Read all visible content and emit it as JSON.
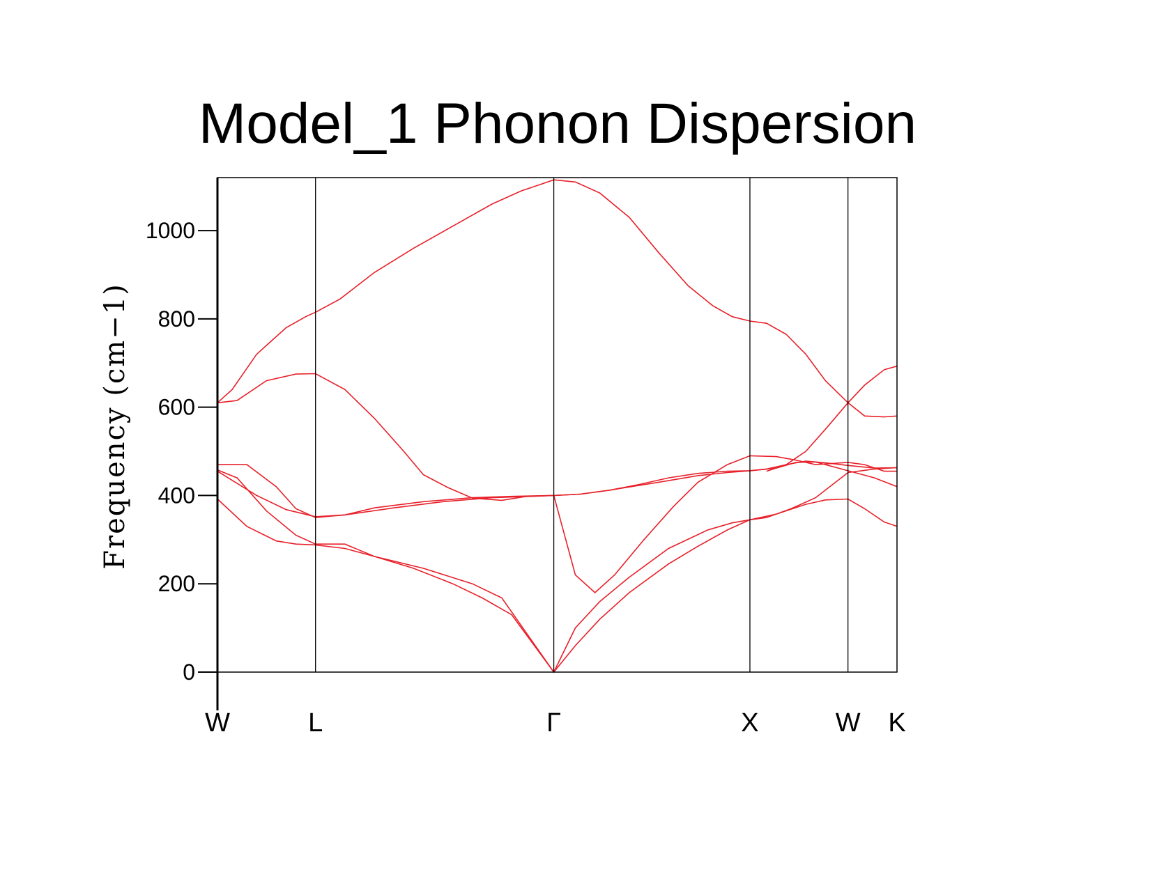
{
  "chart_data": {
    "type": "line",
    "title": "Model_1 Phonon Dispersion",
    "xlabel": "",
    "ylabel": "Frequency  (cm−1)",
    "ylim": [
      0,
      1120
    ],
    "xlim": [
      0,
      6.93
    ],
    "yticks": [
      0,
      200,
      400,
      600,
      800,
      1000
    ],
    "grid": false,
    "legend": "none",
    "line_color": "#e8202a",
    "high_symmetry_points": [
      {
        "label": "W",
        "x": 0
      },
      {
        "label": "L",
        "x": 1.0
      },
      {
        "label": "Γ",
        "x": 3.43
      },
      {
        "label": "X",
        "x": 5.43
      },
      {
        "label": "W",
        "x": 6.43
      },
      {
        "label": "K",
        "x": 6.93
      }
    ],
    "series": [
      {
        "x": [
          0,
          0.3,
          0.6,
          0.8,
          1.0,
          1.3,
          1.6,
          2.0,
          2.4,
          2.7,
          3.0,
          3.43,
          3.65,
          3.9,
          4.2,
          4.6,
          4.9,
          5.2,
          5.43,
          5.7,
          6.0,
          6.2,
          6.43,
          6.6,
          6.8,
          6.93
        ],
        "y": [
          392,
          330,
          297,
          290,
          288,
          280,
          262,
          235,
          200,
          168,
          130,
          0,
          60,
          120,
          180,
          245,
          285,
          322,
          345,
          358,
          380,
          390,
          392,
          370,
          340,
          330
        ]
      },
      {
        "x": [
          0,
          0.2,
          0.5,
          0.8,
          1.0,
          1.3,
          1.6,
          2.1,
          2.6,
          2.9,
          3.43,
          3.65,
          3.9,
          4.2,
          4.6,
          5.0,
          5.25,
          5.43,
          5.6,
          5.85,
          6.1,
          6.43,
          6.7,
          6.93
        ],
        "y": [
          458,
          440,
          365,
          310,
          290,
          290,
          262,
          235,
          200,
          168,
          0,
          100,
          160,
          215,
          280,
          322,
          338,
          345,
          350,
          370,
          395,
          452,
          460,
          463
        ]
      },
      {
        "x": [
          0,
          0.4,
          0.7,
          1.0,
          1.3,
          1.8,
          2.3,
          2.8,
          3.2,
          3.43,
          3.7,
          4.0,
          4.5,
          4.9,
          5.2,
          5.43,
          5.6,
          5.8,
          6.0,
          6.2,
          6.43,
          6.7,
          6.93
        ],
        "y": [
          455,
          400,
          368,
          352,
          356,
          372,
          386,
          395,
          398,
          400,
          403,
          412,
          430,
          445,
          452,
          456,
          460,
          470,
          478,
          474,
          468,
          462,
          463
        ]
      },
      {
        "x": [
          0,
          0.3,
          0.6,
          0.8,
          1.0,
          1.3,
          1.6,
          2.1,
          2.6,
          3.0,
          3.43,
          3.7,
          4.0,
          4.3,
          4.6,
          4.9,
          5.2,
          5.43,
          5.7,
          5.9,
          6.1,
          6.43,
          6.7,
          6.93
        ],
        "y": [
          470,
          470,
          420,
          370,
          350,
          356,
          372,
          386,
          395,
          398,
          400,
          403,
          412,
          425,
          440,
          450,
          455,
          456,
          462,
          475,
          476,
          456,
          440,
          420
        ]
      },
      {
        "x": [
          0,
          0.2,
          0.5,
          0.8,
          1.0,
          1.3,
          1.6,
          1.9,
          2.1,
          2.35,
          2.6,
          2.9,
          3.15,
          3.43,
          3.65,
          3.85,
          4.05,
          4.35,
          4.65,
          4.9,
          5.2,
          5.43,
          5.7,
          5.9,
          6.1,
          6.43,
          6.6,
          6.8,
          6.93
        ],
        "y": [
          610,
          615,
          660,
          675,
          676,
          640,
          575,
          500,
          447,
          418,
          394,
          389,
          398,
          400,
          220,
          180,
          220,
          300,
          375,
          430,
          470,
          490,
          488,
          480,
          470,
          475,
          470,
          455,
          455
        ]
      },
      {
        "x": [
          0,
          0.15,
          0.4,
          0.7,
          0.9,
          1.0,
          1.25,
          1.6,
          2.0,
          2.4,
          2.8,
          3.1,
          3.3,
          3.43,
          3.65,
          3.9,
          4.2,
          4.5,
          4.8,
          5.05,
          5.25,
          5.43,
          5.6,
          5.8,
          6.0,
          6.2,
          6.43,
          6.6,
          6.8,
          6.93
        ],
        "y": [
          610,
          640,
          720,
          780,
          805,
          815,
          845,
          905,
          960,
          1010,
          1060,
          1090,
          1105,
          1115,
          1110,
          1085,
          1030,
          950,
          875,
          830,
          805,
          795,
          790,
          765,
          720,
          660,
          610,
          580,
          578,
          580
        ]
      },
      {
        "x": [
          5.6,
          5.8,
          6.0,
          6.2,
          6.43,
          6.6,
          6.8,
          6.93
        ],
        "y": [
          455,
          470,
          500,
          550,
          610,
          650,
          685,
          693
        ]
      }
    ]
  }
}
